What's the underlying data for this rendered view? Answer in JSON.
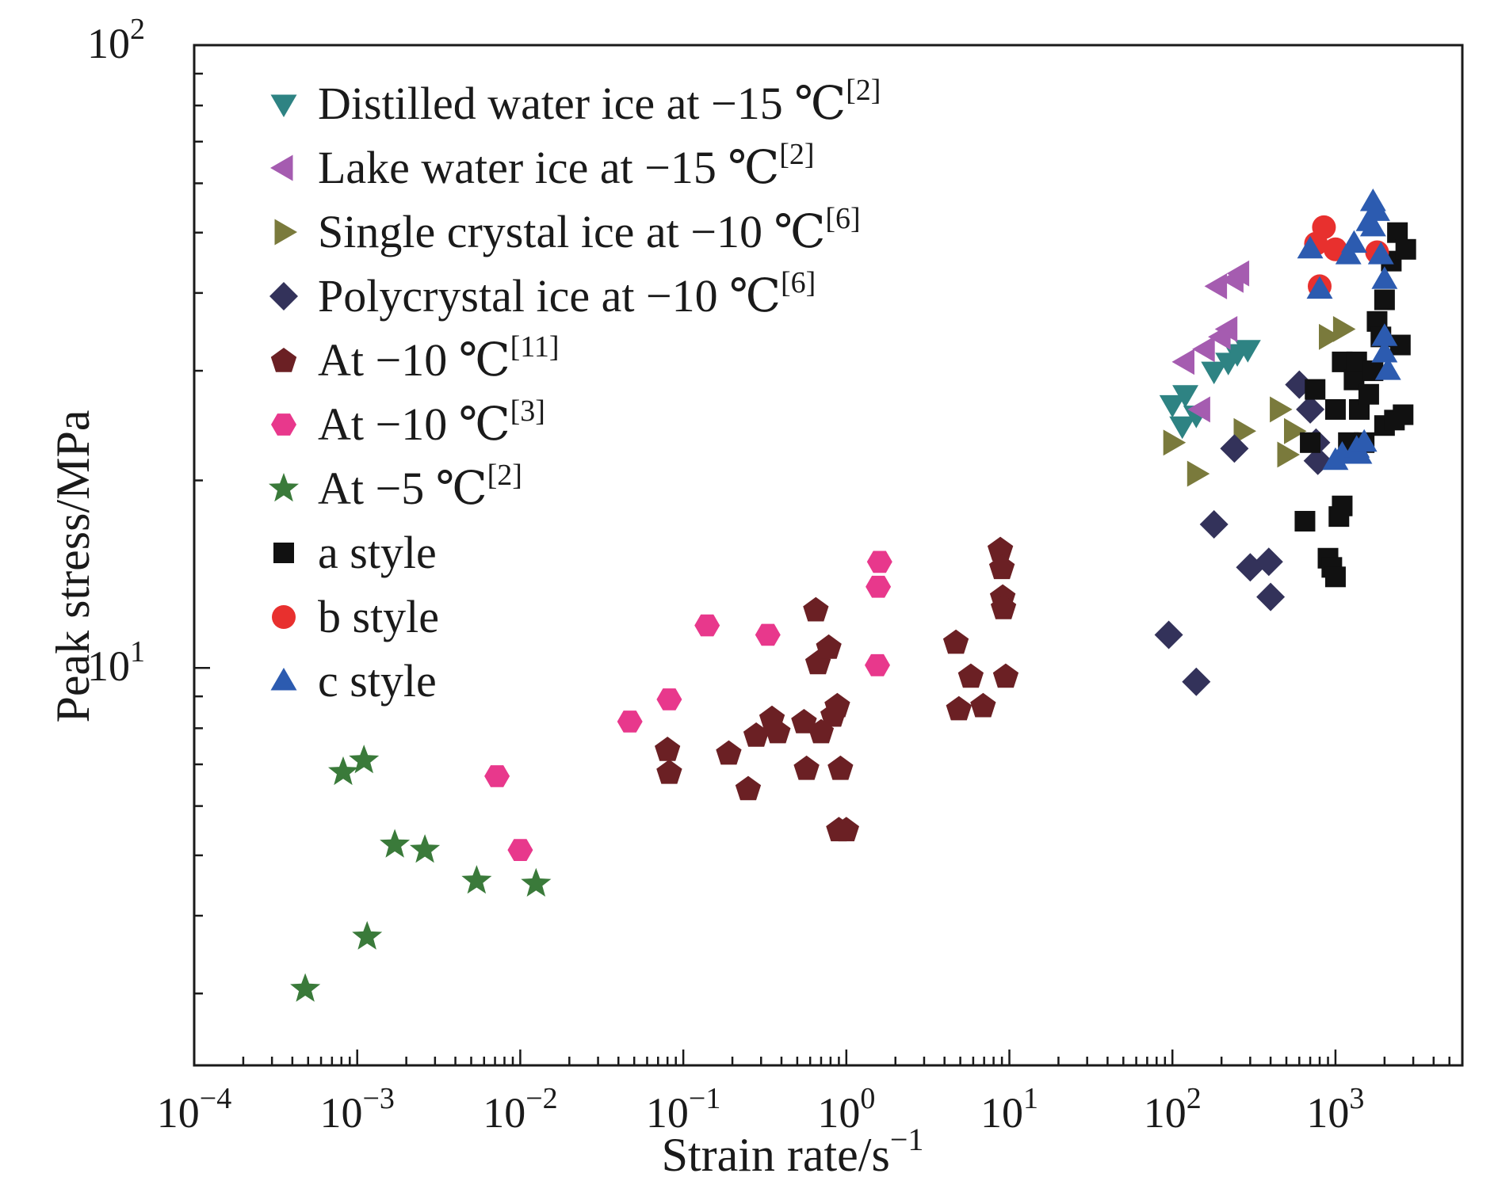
{
  "chart_data": {
    "type": "scatter",
    "title": "",
    "xlabel": "Strain rate/s",
    "xlabel_sup": "−1",
    "ylabel": "Peak stress/MPa",
    "x_scale": "log",
    "y_scale": "log",
    "xlim": [
      0.0001,
      6000
    ],
    "ylim": [
      2.3,
      100
    ],
    "grid": false,
    "legend_position": "top-left",
    "x_ticks": [
      {
        "value": 0.0001,
        "base": "10",
        "exp": "−4"
      },
      {
        "value": 0.001,
        "base": "10",
        "exp": "−3"
      },
      {
        "value": 0.01,
        "base": "10",
        "exp": "−2"
      },
      {
        "value": 0.1,
        "base": "10",
        "exp": "−1"
      },
      {
        "value": 1,
        "base": "10",
        "exp": "0"
      },
      {
        "value": 10,
        "base": "10",
        "exp": "1"
      },
      {
        "value": 100,
        "base": "10",
        "exp": "2"
      },
      {
        "value": 1000,
        "base": "10",
        "exp": "3"
      }
    ],
    "y_ticks": [
      {
        "value": 10,
        "base": "10",
        "exp": "1"
      },
      {
        "value": 100,
        "base": "10",
        "exp": "2"
      }
    ],
    "series": [
      {
        "name": "Distilled water ice at −15 ℃",
        "ref": "[2]",
        "marker": "triangle-down",
        "color": "#2e8383",
        "points": [
          [
            100,
            26.5
          ],
          [
            115,
            24.5
          ],
          [
            120,
            27.5
          ],
          [
            140,
            25.5
          ],
          [
            180,
            30
          ],
          [
            220,
            31
          ],
          [
            250,
            32
          ],
          [
            290,
            32.5
          ]
        ]
      },
      {
        "name": "Lake water ice at −15 ℃",
        "ref": "[2]",
        "marker": "triangle-left",
        "color": "#a55cb0",
        "points": [
          [
            120,
            31
          ],
          [
            150,
            26
          ],
          [
            160,
            32.5
          ],
          [
            190,
            41
          ],
          [
            200,
            34
          ],
          [
            220,
            35
          ],
          [
            240,
            42
          ],
          [
            260,
            43
          ]
        ]
      },
      {
        "name": "Single crystal ice at −10 ℃",
        "ref": "[6]",
        "marker": "triangle-right",
        "color": "#7a7a3c",
        "points": [
          [
            100,
            23
          ],
          [
            140,
            20.5
          ],
          [
            270,
            24
          ],
          [
            450,
            26
          ],
          [
            500,
            22
          ],
          [
            550,
            24
          ],
          [
            900,
            34
          ],
          [
            1100,
            35
          ]
        ]
      },
      {
        "name": "Polycrystal ice at −10 ℃",
        "ref": "[6]",
        "marker": "diamond",
        "color": "#33325a",
        "points": [
          [
            95,
            11.3
          ],
          [
            140,
            9.5
          ],
          [
            180,
            17
          ],
          [
            240,
            22.5
          ],
          [
            300,
            14.5
          ],
          [
            390,
            14.8
          ],
          [
            400,
            13
          ],
          [
            600,
            28.5
          ],
          [
            700,
            26
          ],
          [
            760,
            23
          ],
          [
            780,
            21.5
          ]
        ]
      },
      {
        "name": "At −10 ℃",
        "ref": "[11]",
        "marker": "pentagon",
        "color": "#6b2024",
        "points": [
          [
            0.08,
            7.4
          ],
          [
            0.082,
            6.8
          ],
          [
            0.19,
            7.3
          ],
          [
            0.25,
            6.4
          ],
          [
            0.28,
            7.8
          ],
          [
            0.35,
            8.3
          ],
          [
            0.38,
            7.9
          ],
          [
            0.55,
            8.2
          ],
          [
            0.57,
            6.9
          ],
          [
            0.65,
            12.4
          ],
          [
            0.67,
            10.2
          ],
          [
            0.7,
            7.9
          ],
          [
            0.78,
            10.8
          ],
          [
            0.83,
            8.4
          ],
          [
            0.88,
            8.7
          ],
          [
            0.9,
            5.5
          ],
          [
            0.92,
            6.9
          ],
          [
            1.0,
            5.5
          ],
          [
            4.7,
            11
          ],
          [
            4.9,
            8.6
          ],
          [
            5.8,
            9.7
          ],
          [
            6.9,
            8.7
          ],
          [
            8.8,
            15.5
          ],
          [
            9.0,
            14.5
          ],
          [
            9.1,
            13
          ],
          [
            9.2,
            12.5
          ],
          [
            9.5,
            9.7
          ]
        ]
      },
      {
        "name": "At −10 ℃",
        "ref": "[3]",
        "marker": "hexagon",
        "color": "#e8388c",
        "points": [
          [
            0.0072,
            6.7
          ],
          [
            0.01,
            5.1
          ],
          [
            0.047,
            8.2
          ],
          [
            0.082,
            8.9
          ],
          [
            0.14,
            11.7
          ],
          [
            0.33,
            11.3
          ],
          [
            1.55,
            10.1
          ],
          [
            1.57,
            13.5
          ],
          [
            1.6,
            14.8
          ]
        ]
      },
      {
        "name": "At −5 ℃",
        "ref": "[2]",
        "marker": "star",
        "color": "#3a7a3a",
        "points": [
          [
            0.00048,
            3.05
          ],
          [
            0.00082,
            6.8
          ],
          [
            0.0011,
            7.1
          ],
          [
            0.00115,
            3.7
          ],
          [
            0.0017,
            5.2
          ],
          [
            0.0026,
            5.1
          ],
          [
            0.0054,
            4.55
          ],
          [
            0.0125,
            4.5
          ]
        ]
      },
      {
        "name": "a style",
        "ref": "",
        "marker": "square",
        "color": "#111111",
        "points": [
          [
            650,
            17.2
          ],
          [
            700,
            23
          ],
          [
            750,
            28
          ],
          [
            900,
            15
          ],
          [
            950,
            14.5
          ],
          [
            1000,
            14
          ],
          [
            1000,
            26
          ],
          [
            1050,
            17.5
          ],
          [
            1100,
            18.2
          ],
          [
            1100,
            31
          ],
          [
            1200,
            23
          ],
          [
            1300,
            29
          ],
          [
            1350,
            31
          ],
          [
            1400,
            26
          ],
          [
            1500,
            23
          ],
          [
            1600,
            27.5
          ],
          [
            1700,
            30
          ],
          [
            1800,
            36
          ],
          [
            1900,
            34
          ],
          [
            2000,
            39
          ],
          [
            2000,
            24.5
          ],
          [
            2200,
            45
          ],
          [
            2300,
            25
          ],
          [
            2400,
            50
          ],
          [
            2500,
            33
          ],
          [
            2600,
            25.5
          ],
          [
            2700,
            47
          ]
        ]
      },
      {
        "name": "b style",
        "ref": "",
        "marker": "circle",
        "color": "#e8302e",
        "points": [
          [
            760,
            48
          ],
          [
            800,
            41
          ],
          [
            850,
            51
          ],
          [
            1000,
            47
          ],
          [
            1800,
            46.5
          ]
        ]
      },
      {
        "name": "c style",
        "ref": "",
        "marker": "triangle-up",
        "color": "#2c5bb0",
        "points": [
          [
            700,
            47
          ],
          [
            800,
            40.5
          ],
          [
            1000,
            21.5
          ],
          [
            1100,
            22
          ],
          [
            1200,
            46
          ],
          [
            1300,
            48
          ],
          [
            1350,
            22.5
          ],
          [
            1400,
            22
          ],
          [
            1500,
            23
          ],
          [
            1600,
            52
          ],
          [
            1700,
            56
          ],
          [
            1700,
            51
          ],
          [
            1800,
            54
          ],
          [
            1900,
            46
          ],
          [
            2000,
            42
          ],
          [
            2000,
            34
          ],
          [
            2000,
            32
          ],
          [
            2100,
            30
          ]
        ]
      }
    ]
  }
}
